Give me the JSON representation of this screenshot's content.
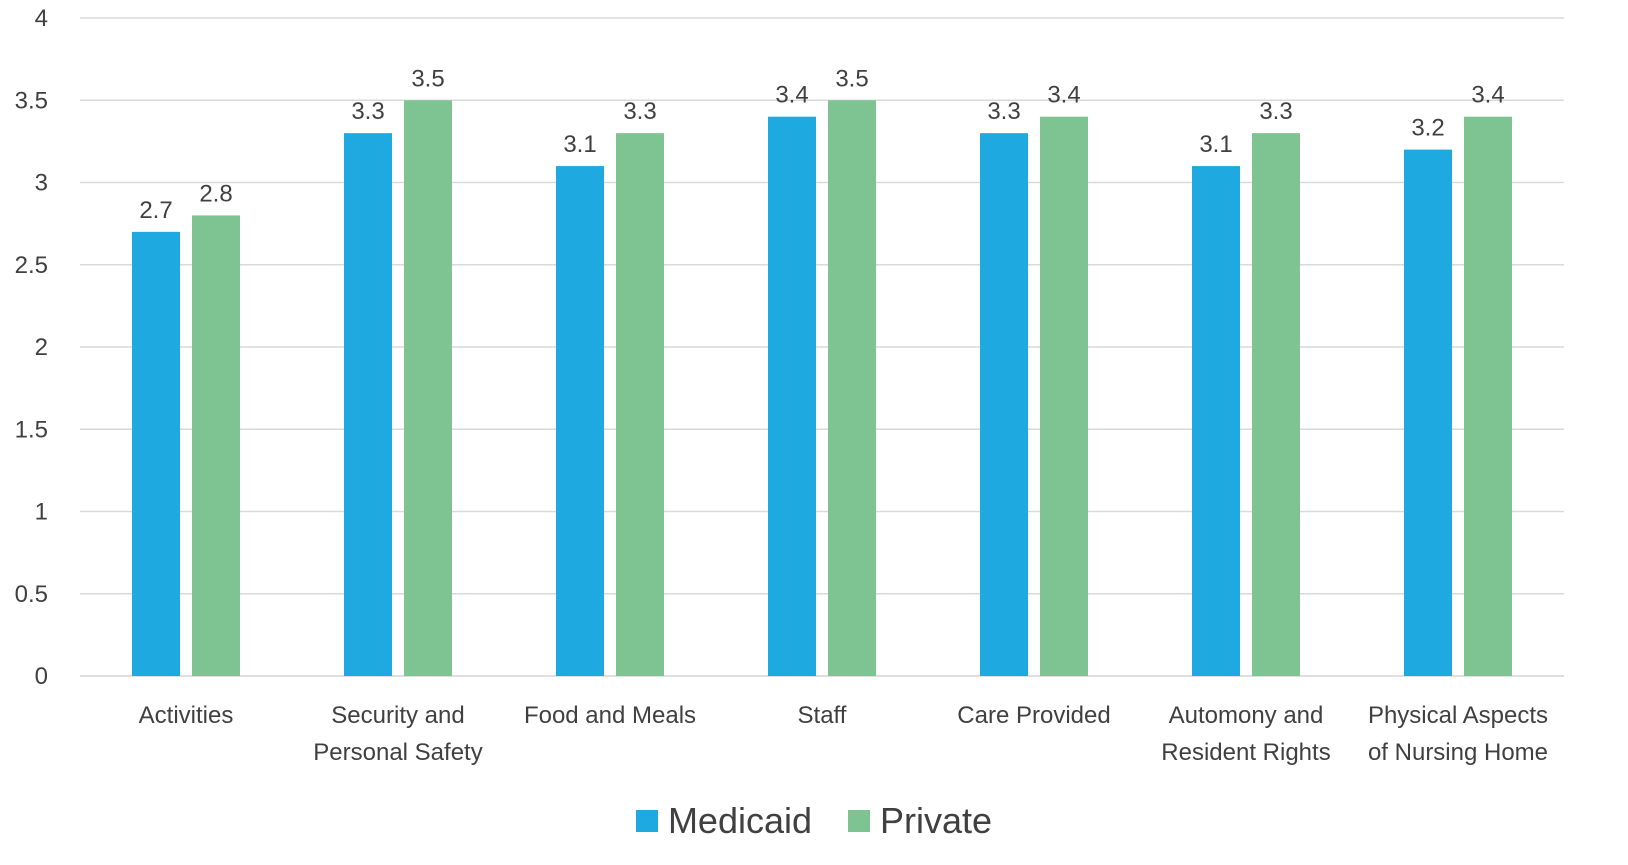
{
  "chart_data": {
    "type": "bar",
    "categories": [
      [
        "Activities"
      ],
      [
        "Security and",
        "Personal Safety"
      ],
      [
        "Food and Meals"
      ],
      [
        "Staff"
      ],
      [
        "Care Provided"
      ],
      [
        "Automony and",
        "Resident Rights"
      ],
      [
        "Physical Aspects",
        "of Nursing Home"
      ]
    ],
    "series": [
      {
        "name": "Medicaid",
        "color": "#1EAAE1",
        "values": [
          2.7,
          3.3,
          3.1,
          3.4,
          3.3,
          3.1,
          3.2
        ]
      },
      {
        "name": "Private",
        "color": "#7EC493",
        "values": [
          2.8,
          3.5,
          3.3,
          3.5,
          3.4,
          3.3,
          3.4
        ]
      }
    ],
    "y_ticks": [
      "0",
      "0.5",
      "1",
      "1.5",
      "2",
      "2.5",
      "3",
      "3.5",
      "4"
    ],
    "ylim": [
      0,
      4
    ],
    "grid": true,
    "legend": "bottom-center",
    "title": "",
    "xlabel": "",
    "ylabel": ""
  }
}
